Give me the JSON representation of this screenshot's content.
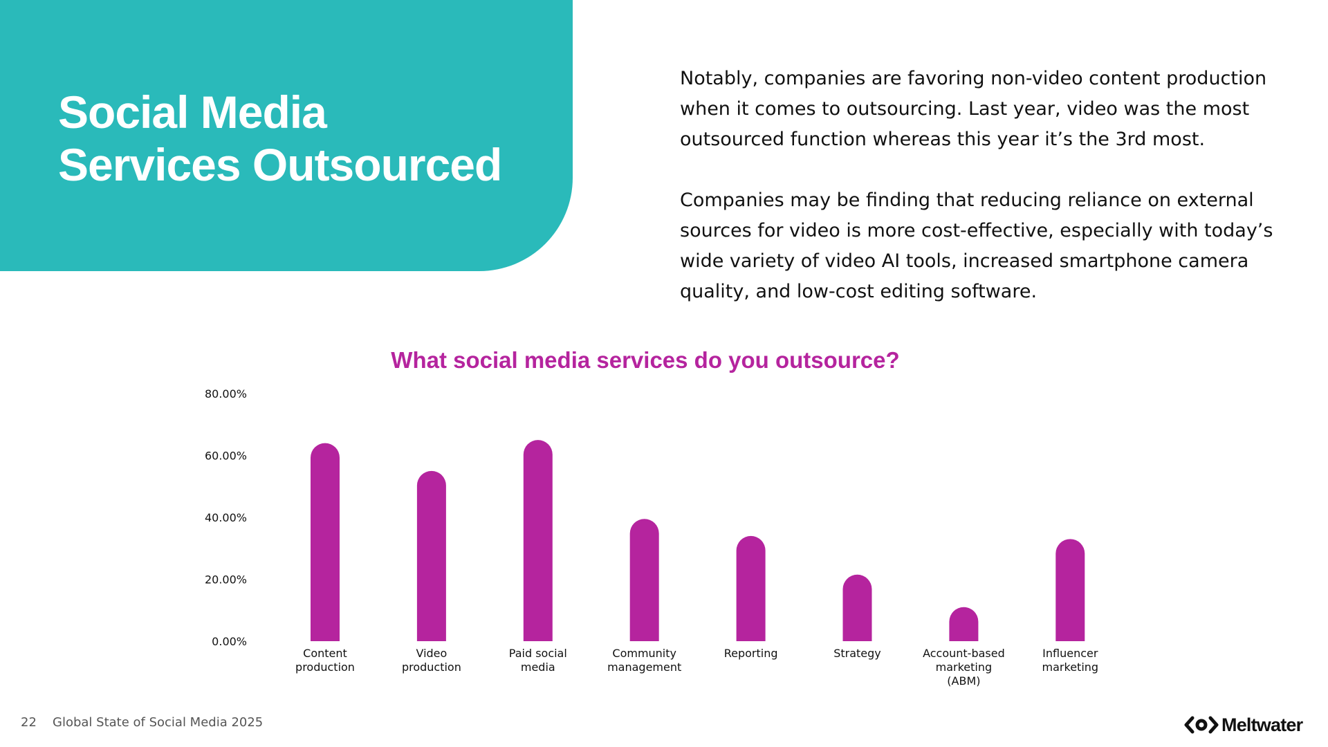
{
  "slide": {
    "title_lines": [
      "Social Media",
      "Services Outsourced"
    ],
    "body_paragraphs": [
      "Notably, companies are favoring non-video content production when it comes to outsourcing. Last year, video was the most outsourced function whereas this year it’s the 3rd most.",
      "Companies may be finding that reducing reliance on external sources for video is more cost-effective, especially with today’s wide variety of video AI tools, increased smartphone camera quality, and low-cost editing software."
    ]
  },
  "footer": {
    "page_number": "22",
    "document_title": "Global State of Social Media 2025",
    "brand": "Meltwater"
  },
  "colors": {
    "teal": "#2ABABA",
    "magenta": "#B5249E",
    "text": "#111111",
    "muted": "#555555"
  },
  "chart_data": {
    "type": "bar",
    "title": "What social media services do you outsource?",
    "xlabel": "",
    "ylabel": "",
    "ylim": [
      0,
      80
    ],
    "yticks": [
      {
        "value": 0,
        "label": "0.00%"
      },
      {
        "value": 20,
        "label": "20.00%"
      },
      {
        "value": 40,
        "label": "40.00%"
      },
      {
        "value": 60,
        "label": "60.00%"
      },
      {
        "value": 80,
        "label": "80.00%"
      }
    ],
    "grid": false,
    "legend": "none",
    "bar_style": "rounded-top",
    "categories": [
      "Content production",
      "Video production",
      "Paid social media",
      "Community management",
      "Reporting",
      "Strategy",
      "Account-based marketing (ABM)",
      "Influencer marketing"
    ],
    "category_label_lines": [
      [
        "Content",
        "production"
      ],
      [
        "Video",
        "production"
      ],
      [
        "Paid social",
        "media"
      ],
      [
        "Community",
        "management"
      ],
      [
        "Reporting"
      ],
      [
        "Strategy"
      ],
      [
        "Account-based",
        "marketing",
        "(ABM)"
      ],
      [
        "Influencer",
        "marketing"
      ]
    ],
    "values": [
      64,
      55,
      65,
      39.5,
      34,
      21.5,
      11,
      33
    ]
  }
}
